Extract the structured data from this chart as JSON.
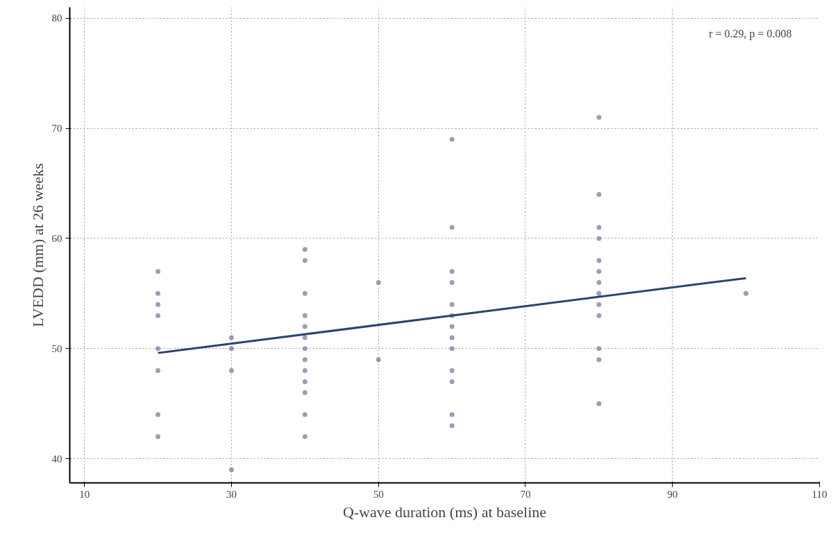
{
  "chart_data": {
    "type": "scatter",
    "xlabel": "Q-wave duration (ms) at baseline",
    "ylabel": "LVEDD (mm) at 26 weeks",
    "annotations": [
      "r = 0.29, p = 0.008"
    ],
    "xlim": [
      8,
      110
    ],
    "ylim": [
      37.8,
      81
    ],
    "xticks": [
      10,
      30,
      50,
      70,
      90,
      110
    ],
    "yticks": [
      40,
      50,
      60,
      70,
      80
    ],
    "grid": true,
    "series": [
      {
        "marker": "circle",
        "color": "#7b7ba0",
        "x": [
          20,
          20,
          20,
          20,
          20,
          20,
          20,
          20,
          30,
          30,
          30,
          30,
          40,
          40,
          40,
          40,
          40,
          40,
          40,
          40,
          40,
          40,
          40,
          40,
          40,
          50,
          50,
          60,
          60,
          60,
          60,
          60,
          60,
          60,
          60,
          60,
          60,
          60,
          60,
          60,
          80,
          80,
          80,
          80,
          80,
          80,
          80,
          80,
          80,
          80,
          80,
          80,
          80,
          100
        ],
        "values": [
          57,
          55,
          54,
          53,
          50,
          48,
          44,
          42,
          51,
          50,
          48,
          39,
          59,
          58,
          55,
          53,
          52,
          51,
          50,
          49,
          48,
          47,
          46,
          44,
          42,
          56,
          49,
          69,
          61,
          57,
          56,
          54,
          53,
          52,
          51,
          50,
          48,
          47,
          44,
          43,
          71,
          64,
          61,
          60,
          58,
          57,
          56,
          55,
          54,
          53,
          50,
          49,
          45,
          55
        ]
      },
      {
        "type": "line",
        "marker": "none",
        "color": "#2e4272",
        "x": [
          20,
          100
        ],
        "values": [
          49.6,
          56.4
        ]
      }
    ]
  }
}
